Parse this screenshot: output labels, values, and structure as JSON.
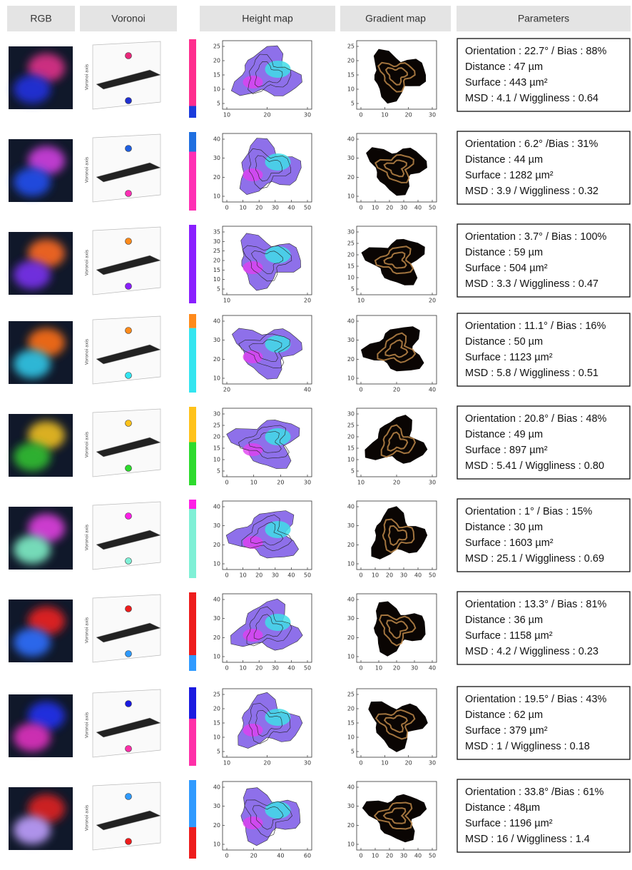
{
  "headers": [
    "RGB",
    "Voronoi",
    "Height map",
    "Gradient map",
    "Parameters"
  ],
  "voronoi_axis_label": "Voronoi axis",
  "rows": [
    {
      "parameters": [
        "Orientation : 22.7° / Bias : 88%",
        "Distance : 47 µm",
        "Surface : 443 µm²",
        "MSD : 4.1 / Wiggliness : 0.64"
      ],
      "height_map": {
        "xticks": [
          10,
          20,
          30
        ],
        "yticks": [
          5,
          10,
          15,
          20,
          25
        ]
      },
      "gradient_map": {
        "xticks": [
          0,
          10,
          20,
          30
        ],
        "yticks": [
          5,
          10,
          15,
          20,
          25
        ]
      }
    },
    {
      "parameters": [
        "Orientation : 6.2° /Bias : 31%",
        "Distance : 44 µm",
        "Surface : 1282 µm²",
        "MSD : 3.9 / Wiggliness : 0.32"
      ],
      "height_map": {
        "xticks": [
          0,
          10,
          20,
          30,
          40,
          50
        ],
        "yticks": [
          10,
          20,
          30,
          40
        ]
      },
      "gradient_map": {
        "xticks": [
          0,
          10,
          20,
          30,
          40,
          50
        ],
        "yticks": [
          10,
          20,
          30,
          40
        ]
      }
    },
    {
      "parameters": [
        "Orientation : 3.7° / Bias : 100%",
        "Distance : 59 µm",
        "Surface : 504 µm²",
        "MSD : 3.3 / Wiggliness : 0.47"
      ],
      "height_map": {
        "xticks": [
          10,
          20
        ],
        "yticks": [
          5,
          10,
          15,
          20,
          25,
          30,
          35
        ]
      },
      "gradient_map": {
        "xticks": [
          10,
          20
        ],
        "yticks": [
          5,
          10,
          15,
          20,
          25,
          30
        ]
      }
    },
    {
      "parameters": [
        "Orientation : 11.1° / Bias : 16%",
        "Distance : 50 µm",
        "Surface : 1123 µm²",
        "MSD : 5.8 / Wiggliness : 0.51"
      ],
      "height_map": {
        "xticks": [
          20,
          40
        ],
        "yticks": [
          10,
          20,
          30,
          40
        ]
      },
      "gradient_map": {
        "xticks": [
          0,
          20,
          40
        ],
        "yticks": [
          10,
          20,
          30,
          40
        ]
      }
    },
    {
      "parameters": [
        "Orientation : 20.8° / Bias : 48%",
        "Distance : 49 µm",
        "Surface : 897 µm²",
        "MSD : 5.41  / Wiggliness : 0.80"
      ],
      "height_map": {
        "xticks": [
          0,
          10,
          20,
          30
        ],
        "yticks": [
          5,
          10,
          15,
          20,
          25,
          30
        ]
      },
      "gradient_map": {
        "xticks": [
          10,
          20,
          30
        ],
        "yticks": [
          5,
          10,
          15,
          20,
          25,
          30
        ]
      }
    },
    {
      "parameters": [
        "Orientation : 1° / Bias : 15%",
        "Distance : 30 µm",
        "Surface : 1603 µm²",
        "MSD : 25.1 / Wiggliness : 0.69"
      ],
      "height_map": {
        "xticks": [
          0,
          10,
          20,
          30,
          40,
          50
        ],
        "yticks": [
          10,
          20,
          30,
          40
        ]
      },
      "gradient_map": {
        "xticks": [
          0,
          10,
          20,
          30,
          40,
          50
        ],
        "yticks": [
          10,
          20,
          30,
          40
        ]
      }
    },
    {
      "parameters": [
        "Orientation : 13.3° / Bias : 81%",
        "Distance : 36 µm",
        "Surface : 1158 µm²",
        "MSD : 4.2 / Wiggliness : 0.23"
      ],
      "height_map": {
        "xticks": [
          0,
          10,
          20,
          30,
          40,
          50
        ],
        "yticks": [
          10,
          20,
          30,
          40
        ]
      },
      "gradient_map": {
        "xticks": [
          0,
          10,
          20,
          30,
          40
        ],
        "yticks": [
          10,
          20,
          30,
          40
        ]
      }
    },
    {
      "parameters": [
        "Orientation : 19.5° / Bias : 43%",
        "Distance : 62 µm",
        "Surface : 379 µm²",
        "MSD : 1 / Wiggliness : 0.18"
      ],
      "height_map": {
        "xticks": [
          10,
          20,
          30
        ],
        "yticks": [
          5,
          10,
          15,
          20,
          25
        ]
      },
      "gradient_map": {
        "xticks": [
          0,
          10,
          20,
          30
        ],
        "yticks": [
          5,
          10,
          15,
          20,
          25
        ]
      }
    },
    {
      "parameters": [
        "Orientation : 33.8° /Bias : 61%",
        "Distance : 48µm",
        "Surface : 1196 µm²",
        "MSD : 16 / Wiggliness : 1.4"
      ],
      "height_map": {
        "xticks": [
          0,
          20,
          40,
          60
        ],
        "yticks": [
          10,
          20,
          30,
          40
        ]
      },
      "gradient_map": {
        "xticks": [
          0,
          10,
          20,
          30,
          40,
          50
        ],
        "yticks": [
          10,
          20,
          30,
          40
        ]
      }
    }
  ]
}
